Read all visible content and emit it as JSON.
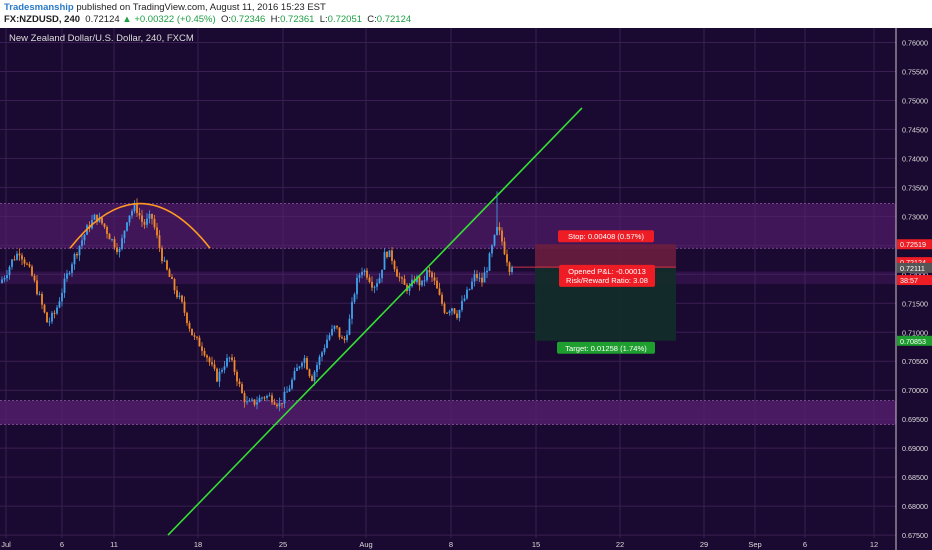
{
  "header": {
    "author": "Tradesmanship",
    "published_text": "published on TradingView.com, August 11, 2016 15:23 EST",
    "symbol": "FX:NZDUSD, 240",
    "last": "0.72124",
    "change": "+0.00322 (+0.45%)",
    "open_label": "O:",
    "open": "0.72346",
    "high_label": "H:",
    "high": "0.72361",
    "low_label": "L:",
    "low": "0.72051",
    "close_label": "C:",
    "close": "0.72124"
  },
  "colors": {
    "background": "#1a0930",
    "grid": "#3a1f52",
    "up_candle": "#3fa3ee",
    "down_candle": "#f08a2a",
    "trendline": "#33e033",
    "arc": "#ff9922",
    "zone": "#5a1f73",
    "stop_zone": "#6a1e3e",
    "target_zone": "#132c2a",
    "stop_label": "#ee1c25",
    "target_label": "#1e9e2e",
    "axis_text": "#dddddd"
  },
  "chart_data": {
    "type": "candlestick",
    "title": "New Zealand Dollar/U.S. Dollar, 240, FXCM",
    "ylim": [
      0.6745,
      0.7625
    ],
    "y_ticks": [
      "0.76000",
      "0.75500",
      "0.75000",
      "0.74500",
      "0.74000",
      "0.73500",
      "0.73000",
      "0.72500",
      "0.72000",
      "0.71500",
      "0.71000",
      "0.70500",
      "0.70000",
      "0.69500",
      "0.69000",
      "0.68500",
      "0.68000",
      "0.67500"
    ],
    "x_ticks": [
      "Jul",
      "6",
      "11",
      "18",
      "25",
      "Aug",
      "8",
      "15",
      "22",
      "29",
      "Sep",
      "6",
      "12"
    ],
    "price_path": [
      [
        0,
        0.718
      ],
      [
        8,
        0.72
      ],
      [
        15,
        0.7225
      ],
      [
        22,
        0.724
      ],
      [
        28,
        0.722
      ],
      [
        35,
        0.7195
      ],
      [
        42,
        0.716
      ],
      [
        50,
        0.7115
      ],
      [
        58,
        0.7135
      ],
      [
        66,
        0.718
      ],
      [
        74,
        0.722
      ],
      [
        82,
        0.725
      ],
      [
        90,
        0.728
      ],
      [
        98,
        0.73
      ],
      [
        106,
        0.7285
      ],
      [
        114,
        0.726
      ],
      [
        122,
        0.724
      ],
      [
        130,
        0.73
      ],
      [
        138,
        0.7318
      ],
      [
        146,
        0.7285
      ],
      [
        154,
        0.73
      ],
      [
        160,
        0.726
      ],
      [
        166,
        0.722
      ],
      [
        172,
        0.7195
      ],
      [
        178,
        0.717
      ],
      [
        184,
        0.715
      ],
      [
        190,
        0.712
      ],
      [
        196,
        0.709
      ],
      [
        202,
        0.708
      ],
      [
        208,
        0.7065
      ],
      [
        214,
        0.704
      ],
      [
        220,
        0.702
      ],
      [
        226,
        0.7045
      ],
      [
        232,
        0.7055
      ],
      [
        238,
        0.703
      ],
      [
        244,
        0.6995
      ],
      [
        250,
        0.6975
      ],
      [
        258,
        0.698
      ],
      [
        266,
        0.699
      ],
      [
        274,
        0.6988
      ],
      [
        282,
        0.6975
      ],
      [
        290,
        0.6998
      ],
      [
        298,
        0.703
      ],
      [
        306,
        0.706
      ],
      [
        314,
        0.702
      ],
      [
        322,
        0.7055
      ],
      [
        330,
        0.709
      ],
      [
        338,
        0.711
      ],
      [
        346,
        0.708
      ],
      [
        352,
        0.712
      ],
      [
        358,
        0.718
      ],
      [
        364,
        0.721
      ],
      [
        370,
        0.72
      ],
      [
        376,
        0.718
      ],
      [
        382,
        0.7195
      ],
      [
        388,
        0.724
      ],
      [
        394,
        0.723
      ],
      [
        400,
        0.72
      ],
      [
        406,
        0.718
      ],
      [
        412,
        0.7175
      ],
      [
        418,
        0.7195
      ],
      [
        424,
        0.718
      ],
      [
        430,
        0.7205
      ],
      [
        436,
        0.719
      ],
      [
        442,
        0.716
      ],
      [
        448,
        0.7135
      ],
      [
        454,
        0.7145
      ],
      [
        460,
        0.713
      ],
      [
        466,
        0.7155
      ],
      [
        472,
        0.7175
      ],
      [
        478,
        0.72
      ],
      [
        484,
        0.7185
      ],
      [
        490,
        0.7215
      ],
      [
        496,
        0.7255
      ],
      [
        500,
        0.728
      ],
      [
        504,
        0.726
      ],
      [
        508,
        0.7235
      ],
      [
        512,
        0.7212
      ]
    ],
    "resistance_zone": [
      0.7245,
      0.7322
    ],
    "support_zone": [
      0.6941,
      0.6982
    ],
    "mid_zone": [
      0.7183,
      0.7205
    ],
    "trendline": [
      [
        168,
        0.675
      ],
      [
        582,
        0.7487
      ]
    ],
    "arc": {
      "from": [
        70,
        0.7245
      ],
      "peak": [
        140,
        0.7322
      ],
      "to": [
        210,
        0.7245
      ]
    },
    "position": {
      "entry": 0.72111,
      "stop": 0.72519,
      "target": 0.70853,
      "stop_text": "Stop: 0.00408 (0.57%)",
      "target_text": "Target: 0.01258 (1.74%)",
      "pnl_text": "Opened P&L: -0.00013",
      "rr_text": "Risk/Reward Ratio: 3.08"
    },
    "price_labels": [
      {
        "text": "0.72519",
        "color": "#ee1c25"
      },
      {
        "text": "0.72124",
        "color": "#ee1c25"
      },
      {
        "text": "38:57",
        "color": "#ee1c25"
      },
      {
        "text": "0.72111",
        "color": "#555555"
      },
      {
        "text": "0.70853",
        "color": "#1e9e2e"
      }
    ]
  }
}
